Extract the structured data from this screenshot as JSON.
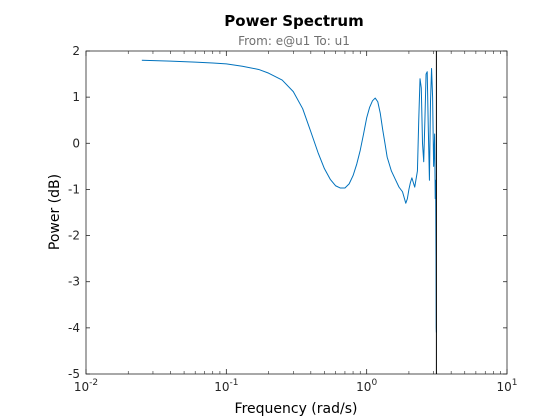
{
  "chart_data": {
    "type": "line",
    "title": "Power Spectrum",
    "subtitle": "From: e@u1  To: u1",
    "xlabel": "Frequency  (rad/s)",
    "ylabel": "Power (dB)",
    "x_scale": "log",
    "xlim": [
      0.01,
      10
    ],
    "ylim": [
      -5,
      2
    ],
    "x_ticks": [
      {
        "value": 0.01,
        "base": "10",
        "exp": "-2"
      },
      {
        "value": 0.1,
        "base": "10",
        "exp": "-1"
      },
      {
        "value": 1,
        "base": "10",
        "exp": "0"
      },
      {
        "value": 10,
        "base": "10",
        "exp": "1"
      }
    ],
    "y_ticks": [
      2,
      1,
      0,
      -1,
      -2,
      -3,
      -4,
      -5
    ],
    "grid": false,
    "line_color": "#0072BD",
    "nyquist_line": {
      "x": 3.14,
      "color": "#000000"
    },
    "series": [
      {
        "x": [
          0.025,
          0.04,
          0.06,
          0.08,
          0.1,
          0.13,
          0.17,
          0.2,
          0.25,
          0.3,
          0.35,
          0.4,
          0.45,
          0.5,
          0.55,
          0.6,
          0.65,
          0.7,
          0.75,
          0.8,
          0.85,
          0.9,
          0.95,
          1.0,
          1.05,
          1.1,
          1.15,
          1.2,
          1.25,
          1.3,
          1.35,
          1.4,
          1.5,
          1.6,
          1.7,
          1.8,
          1.9,
          1.95,
          2.0,
          2.05,
          2.1,
          2.2,
          2.3,
          2.35,
          2.4,
          2.45,
          2.5,
          2.55,
          2.6,
          2.65,
          2.7,
          2.75,
          2.8,
          2.85,
          2.9,
          2.95,
          3.0,
          3.05,
          3.08,
          3.1,
          3.12,
          3.13,
          3.14
        ],
        "y": [
          1.8,
          1.78,
          1.76,
          1.74,
          1.72,
          1.67,
          1.6,
          1.52,
          1.37,
          1.12,
          0.75,
          0.25,
          -0.2,
          -0.55,
          -0.78,
          -0.92,
          -0.97,
          -0.97,
          -0.88,
          -0.7,
          -0.45,
          -0.15,
          0.2,
          0.55,
          0.78,
          0.92,
          0.98,
          0.9,
          0.65,
          0.3,
          0.0,
          -0.3,
          -0.6,
          -0.78,
          -0.95,
          -1.05,
          -1.3,
          -1.2,
          -1.0,
          -0.85,
          -0.75,
          -0.95,
          -0.6,
          0.5,
          1.4,
          1.2,
          0.0,
          -0.4,
          0.5,
          1.5,
          1.55,
          0.3,
          -0.8,
          0.9,
          1.62,
          1.0,
          -0.5,
          0.2,
          -1.2,
          -0.8,
          -2.5,
          -4.0,
          -4.1
        ]
      }
    ]
  }
}
